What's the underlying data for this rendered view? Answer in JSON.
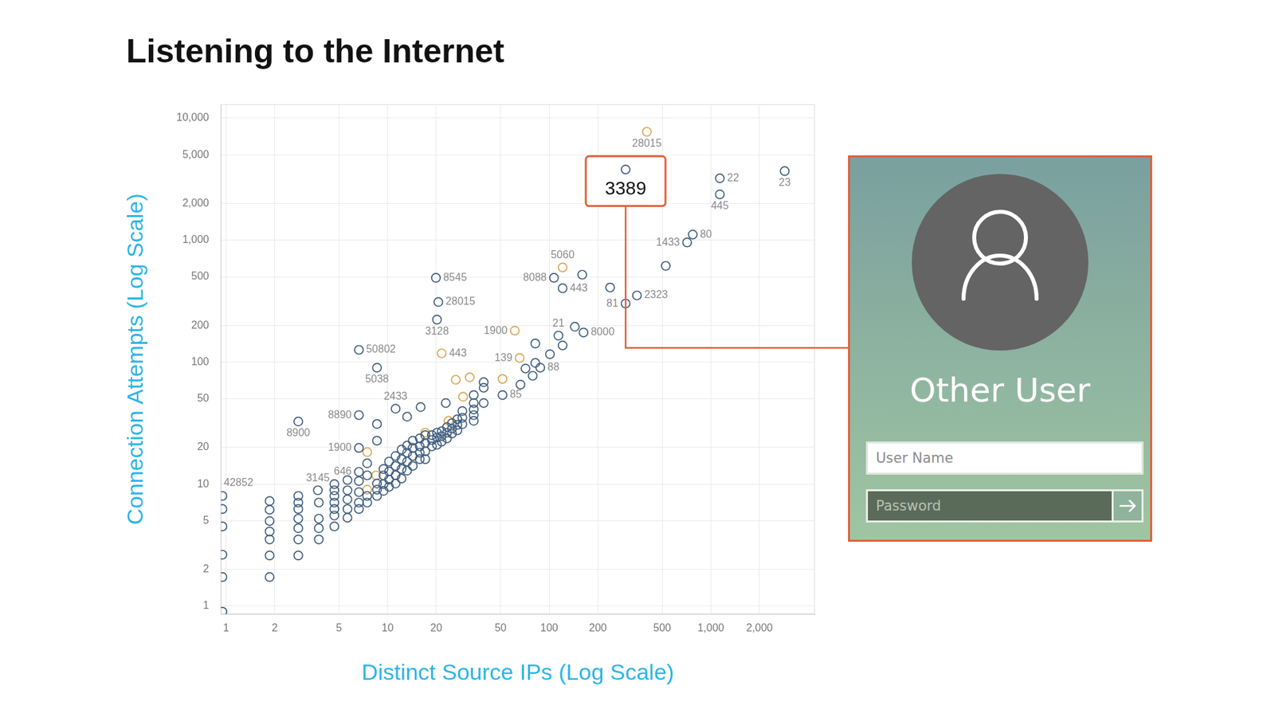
{
  "chart_data": {
    "type": "scatter",
    "title": "Listening to the Internet",
    "x_label": "Distinct Source IPs (Log Scale)",
    "y_label": "Connection Attempts (Log Scale)",
    "log": true,
    "grid": true,
    "xlim": [
      0.93,
      4400
    ],
    "ylim": [
      0.86,
      13000
    ],
    "xticks": [
      1,
      2,
      5,
      10,
      20,
      50,
      100,
      200,
      500,
      {
        "value": 1000,
        "label": "1,000"
      },
      {
        "value": 2000,
        "label": "2,000"
      }
    ],
    "yticks": [
      1,
      2,
      5,
      10,
      20,
      50,
      100,
      200,
      500,
      {
        "value": 1000,
        "label": "1,000"
      },
      {
        "value": 2000,
        "label": "2,000"
      },
      {
        "value": 5000,
        "label": "5,000"
      },
      {
        "value": 10000,
        "label": "10,000"
      }
    ],
    "series": [
      {
        "color": "#3e5c7e",
        "marker": "circle",
        "x": [
          297,
          1137,
          1137,
          2865,
          773,
          713,
          349,
          297,
          107,
          121,
          19.9,
          20.6,
          20.2,
          114,
          163,
          6.64,
          8.59,
          88,
          51.4,
          11.2,
          6.64,
          2.8,
          6.64,
          6.64,
          3.7,
          0.95,
          526,
          238,
          160,
          144,
          82,
          121,
          101,
          82,
          71.3,
          79,
          66.4,
          13.2,
          16,
          22.9,
          8.59,
          39.3,
          39.3,
          39.3,
          34.1,
          34.1,
          34.1,
          34.1,
          34.1,
          29,
          29,
          29,
          8.59,
          5.64,
          0.95,
          0.95,
          0.95,
          0.95,
          0.95,
          1.86,
          1.86,
          1.86,
          1.86,
          1.86,
          1.86,
          1.86,
          2.8,
          2.8,
          2.8,
          2.8,
          2.8,
          2.8,
          2.8,
          3.75,
          3.75,
          3.75,
          3.75,
          4.68,
          4.68,
          4.68,
          4.68,
          4.68,
          4.68,
          4.68,
          5.64,
          5.64,
          5.64,
          5.64,
          6.64,
          6.64,
          6.64,
          6.64,
          7.47,
          7.47,
          7.47,
          7.47,
          8.59,
          8.59,
          8.59,
          9.43,
          9.43,
          9.43,
          9.43,
          10.2,
          10.2,
          10.2,
          10.2,
          11.2,
          11.2,
          11.2,
          11.2,
          12.2,
          12.2,
          12.2,
          12.2,
          13.2,
          13.2,
          13.2,
          13.2,
          14.3,
          14.3,
          14.3,
          14.3,
          15.8,
          15.8,
          15.8,
          15.8,
          17.1,
          17.1,
          17.1,
          17.1,
          18.8,
          18.8,
          18.8,
          20.2,
          20.2,
          20.2,
          21.6,
          21.6,
          21.6,
          23.3,
          23.3,
          23.3,
          25,
          25,
          25,
          27,
          27,
          27
        ],
        "values": [
          3790,
          3210,
          2370,
          3680,
          1110,
          957,
          352,
          302,
          491,
          403,
          491,
          311,
          223,
          165,
          175,
          126,
          90,
          90,
          53.7,
          41.5,
          36.8,
          32.6,
          19.8,
          12.6,
          8.9,
          8,
          615,
          409,
          521,
          195,
          142,
          137,
          116,
          98.5,
          88.6,
          77.3,
          65.4,
          35.7,
          42.8,
          46.2,
          31.1,
          68.5,
          61.6,
          46.2,
          53.7,
          46.2,
          40.9,
          36.8,
          33,
          39.7,
          35,
          31,
          22.7,
          10.8,
          6.25,
          4.5,
          2.64,
          1.73,
          0.9,
          7.27,
          6.16,
          4.98,
          4.09,
          3.52,
          2.6,
          1.73,
          8,
          7.06,
          6.25,
          5.21,
          4.35,
          3.52,
          2.6,
          7.06,
          5.21,
          4.35,
          3.52,
          10,
          8.9,
          8,
          7.06,
          6.25,
          5.53,
          4.5,
          8.9,
          7.5,
          6.25,
          5.3,
          10.6,
          8.6,
          7.06,
          6.25,
          14.8,
          11.8,
          8,
          7.06,
          10.1,
          9,
          8,
          13.3,
          11.8,
          10,
          8.8,
          15.3,
          12.7,
          10.9,
          9.5,
          17,
          14.1,
          11.8,
          10.1,
          19.2,
          16,
          13.3,
          11.1,
          20.7,
          18.1,
          15.3,
          12.9,
          22.7,
          19.8,
          17,
          14.1,
          23.7,
          20.4,
          18.1,
          16,
          25.2,
          21.7,
          18.6,
          16,
          25.2,
          23,
          20.4,
          26.4,
          24.1,
          21,
          27.1,
          24.7,
          22.3,
          29.3,
          26.4,
          23.7,
          31.6,
          28.5,
          26,
          34,
          30.6,
          27.6
        ],
        "labels": [
          "3389",
          "22",
          "445",
          "23",
          "80",
          "1433",
          "2323",
          "81",
          "8088",
          "443",
          "8545",
          "28015",
          "3128",
          "21",
          "8000",
          "50802",
          "5038",
          "88",
          "85",
          "2433",
          "8890",
          "8900",
          "1900",
          "646",
          "3145",
          "42852",
          null,
          null,
          null,
          null,
          null,
          null,
          null,
          null,
          null,
          null,
          null,
          null,
          null,
          null,
          null,
          null,
          null,
          null,
          null,
          null,
          null,
          null,
          null,
          null,
          null,
          null,
          null,
          null,
          null,
          null,
          null,
          null,
          null,
          null,
          null,
          null,
          null,
          null,
          null,
          null,
          null,
          null,
          null,
          null,
          null,
          null,
          null,
          null,
          null,
          null,
          null,
          null,
          null,
          null,
          null,
          null,
          null,
          null,
          null,
          null,
          null,
          null,
          null,
          null,
          null,
          null,
          null,
          null,
          null,
          null,
          null,
          null,
          null,
          null,
          null,
          null,
          null,
          null,
          null,
          null,
          null,
          null,
          null,
          null,
          null,
          null,
          null,
          null,
          null,
          null,
          null,
          null,
          null,
          null,
          null,
          null,
          null,
          null,
          null,
          null,
          null,
          null,
          null,
          null,
          null,
          null,
          null,
          null,
          null,
          null,
          null,
          null,
          null,
          null,
          null,
          null,
          null,
          null,
          null,
          null,
          null,
          null,
          null
        ]
      },
      {
        "color": "#d9a54e",
        "marker": "circle",
        "x": [
          402,
          121,
          61.2,
          21.6,
          65.6,
          51.4,
          26.4,
          32.2,
          29.3,
          23.8,
          17.1,
          7.47,
          8.49,
          7.47
        ],
        "values": [
          7730,
          597,
          181,
          118,
          108,
          72.8,
          71.7,
          75,
          52,
          33,
          26.4,
          18.3,
          11.8,
          9.0
        ],
        "labels": [
          "28015",
          "5060",
          "1900",
          "443",
          "139",
          null,
          null,
          null,
          null,
          null,
          null,
          null,
          null,
          null
        ]
      }
    ],
    "callout": {
      "point": "3389",
      "title": "Other User",
      "fields": [
        "User Name",
        "Password"
      ]
    }
  }
}
